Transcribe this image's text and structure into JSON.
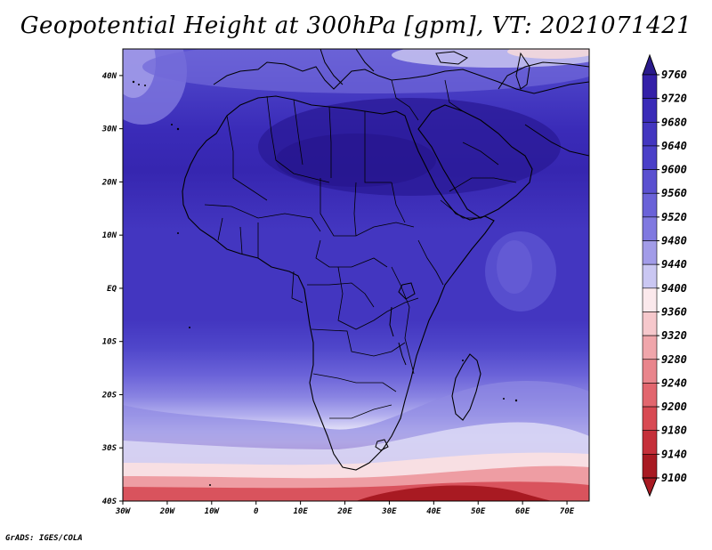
{
  "title": "Geopotential Height at 300hPa [gpm], VT: 2021071421",
  "credit": "GrADS: IGES/COLA",
  "map": {
    "projection": "latlon",
    "lon_range": [
      -30,
      75
    ],
    "lat_range": [
      -40,
      45
    ],
    "lon_ticks": [
      "30W",
      "20W",
      "10W",
      "0",
      "10E",
      "20E",
      "30E",
      "40E",
      "50E",
      "60E",
      "70E"
    ],
    "lat_ticks": [
      "40N",
      "30N",
      "20N",
      "10N",
      "EQ",
      "10S",
      "20S",
      "30S",
      "40S"
    ]
  },
  "colorbar": {
    "levels": [
      "9760",
      "9720",
      "9680",
      "9640",
      "9600",
      "9560",
      "9520",
      "9480",
      "9440",
      "9400",
      "9360",
      "9320",
      "9280",
      "9240",
      "9200",
      "9180",
      "9140",
      "9100"
    ],
    "colors": [
      "#2a1a8c",
      "#3420a8",
      "#3a2bb8",
      "#4336c0",
      "#4b40c8",
      "#5a50d0",
      "#6a62d8",
      "#8079e0",
      "#a29ce8",
      "#cac7f2",
      "#fbe9ec",
      "#f6c8cc",
      "#f0a6ab",
      "#e9858c",
      "#e2666e",
      "#d84a53",
      "#c5303a",
      "#a81a22"
    ]
  }
}
